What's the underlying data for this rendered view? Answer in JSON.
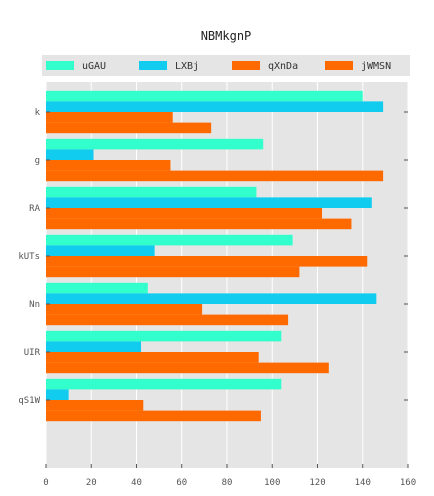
{
  "chart_data": {
    "type": "bar",
    "orientation": "horizontal",
    "title": "NBMkgnP",
    "categories": [
      "k",
      "g",
      "RA",
      "kUTs",
      "Nn",
      "UIR",
      "qS1W"
    ],
    "series": [
      {
        "name": "uGAU",
        "color": "#33ffcc",
        "values": [
          140,
          96,
          93,
          109,
          45,
          104,
          104
        ]
      },
      {
        "name": "LXBj",
        "color": "#11ccee",
        "values": [
          149,
          21,
          144,
          48,
          146,
          42,
          10
        ]
      },
      {
        "name": "qXnDa",
        "color": "#ff6a00",
        "values": [
          56,
          55,
          122,
          142,
          69,
          94,
          43
        ]
      },
      {
        "name": "jWMSN",
        "color": "#ff6a00",
        "values": [
          73,
          149,
          135,
          112,
          107,
          125,
          95
        ]
      }
    ],
    "xlim": [
      0,
      160
    ],
    "xticks": [
      0,
      20,
      40,
      60,
      80,
      100,
      120,
      140,
      160
    ],
    "xlabel": "",
    "ylabel": "",
    "grid": true,
    "legend_position": "top"
  }
}
